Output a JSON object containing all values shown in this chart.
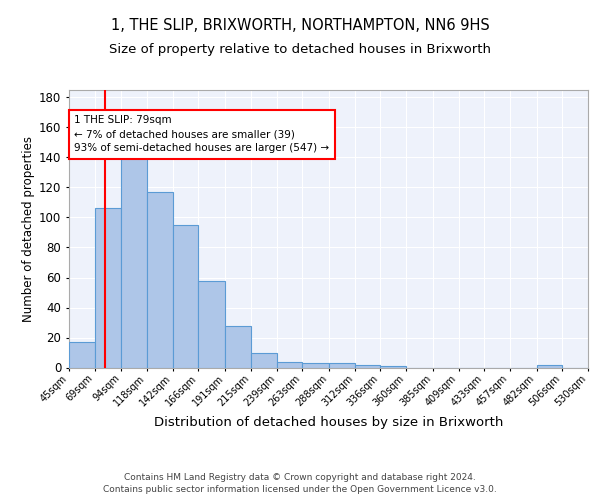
{
  "title": "1, THE SLIP, BRIXWORTH, NORTHAMPTON, NN6 9HS",
  "subtitle": "Size of property relative to detached houses in Brixworth",
  "xlabel": "Distribution of detached houses by size in Brixworth",
  "ylabel": "Number of detached properties",
  "bar_color": "#aec6e8",
  "bar_edge_color": "#5b9bd5",
  "background_color": "#eef2fb",
  "grid_color": "#ffffff",
  "annotation_text": "1 THE SLIP: 79sqm\n← 7% of detached houses are smaller (39)\n93% of semi-detached houses are larger (547) →",
  "property_line_x": 79,
  "bin_edges": [
    45,
    69,
    94,
    118,
    142,
    166,
    191,
    215,
    239,
    263,
    288,
    312,
    336,
    360,
    385,
    409,
    433,
    457,
    482,
    506,
    530
  ],
  "bin_labels": [
    "45sqm",
    "69sqm",
    "94sqm",
    "118sqm",
    "142sqm",
    "166sqm",
    "191sqm",
    "215sqm",
    "239sqm",
    "263sqm",
    "288sqm",
    "312sqm",
    "336sqm",
    "360sqm",
    "385sqm",
    "409sqm",
    "433sqm",
    "457sqm",
    "482sqm",
    "506sqm",
    "530sqm"
  ],
  "counts": [
    17,
    106,
    148,
    117,
    95,
    58,
    28,
    10,
    4,
    3,
    3,
    2,
    1,
    0,
    0,
    0,
    0,
    0,
    2,
    0
  ],
  "ylim": [
    0,
    185
  ],
  "yticks": [
    0,
    20,
    40,
    60,
    80,
    100,
    120,
    140,
    160,
    180
  ],
  "footer": "Contains HM Land Registry data © Crown copyright and database right 2024.\nContains public sector information licensed under the Open Government Licence v3.0."
}
